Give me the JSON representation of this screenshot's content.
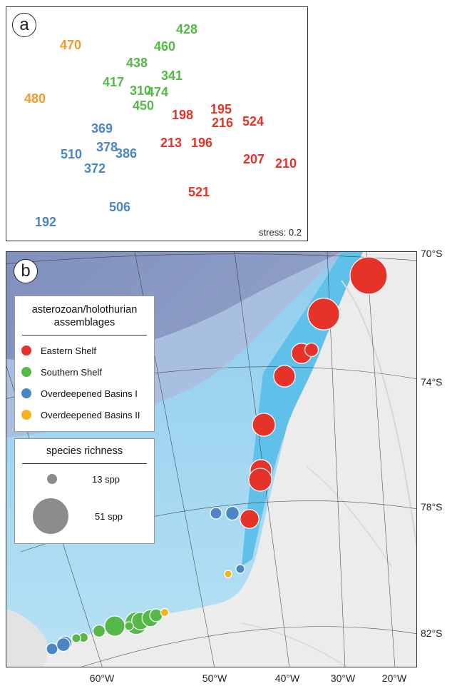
{
  "panel_a": {
    "label": "a",
    "stress": "stress: 0.2",
    "colors": {
      "eastern": "#e63329",
      "southern": "#55b848",
      "basins1": "#4a86c5",
      "basins2": "#f39a2a"
    },
    "points": [
      {
        "text": "428",
        "group": "southern"
      },
      {
        "text": "470",
        "group": "basins2"
      },
      {
        "text": "460",
        "group": "southern"
      },
      {
        "text": "438",
        "group": "southern"
      },
      {
        "text": "341",
        "group": "southern"
      },
      {
        "text": "417",
        "group": "southern"
      },
      {
        "text": "310",
        "group": "southern"
      },
      {
        "text": "474",
        "group": "southern"
      },
      {
        "text": "480",
        "group": "basins2"
      },
      {
        "text": "450",
        "group": "southern"
      },
      {
        "text": "195",
        "group": "eastern"
      },
      {
        "text": "198",
        "group": "eastern"
      },
      {
        "text": "216",
        "group": "eastern"
      },
      {
        "text": "524",
        "group": "eastern"
      },
      {
        "text": "369",
        "group": "basins1"
      },
      {
        "text": "213",
        "group": "eastern"
      },
      {
        "text": "196",
        "group": "eastern"
      },
      {
        "text": "378",
        "group": "basins1"
      },
      {
        "text": "510",
        "group": "basins1"
      },
      {
        "text": "386",
        "group": "basins1"
      },
      {
        "text": "207",
        "group": "eastern"
      },
      {
        "text": "210",
        "group": "eastern"
      },
      {
        "text": "372",
        "group": "basins1"
      },
      {
        "text": "521",
        "group": "eastern"
      },
      {
        "text": "506",
        "group": "basins1"
      },
      {
        "text": "192",
        "group": "basins1"
      }
    ]
  },
  "panel_b": {
    "label": "b",
    "lat_labels": [
      "70°S",
      "74°S",
      "78°S",
      "82°S"
    ],
    "lon_labels": [
      "60°W",
      "50°W",
      "40°W",
      "30°W",
      "20°W"
    ],
    "legend": {
      "title": "asterozoan/holothurian assemblages",
      "title_line1": "asterozoan/holothurian",
      "title_line2": "assemblages",
      "items": [
        {
          "label": "Eastern Shelf",
          "color": "#e63329"
        },
        {
          "label": "Southern Shelf",
          "color": "#55b848"
        },
        {
          "label": "Overdeepened Basins I",
          "color": "#4a86c5"
        },
        {
          "label": "Overdeepened Basins II",
          "color": "#f7b21f"
        }
      ],
      "size_title": "species richness",
      "size_items": [
        {
          "label": "13 spp",
          "species": 13
        },
        {
          "label": "51 spp",
          "species": 51
        }
      ]
    },
    "sites": [
      {
        "group": "eastern",
        "species": 51
      },
      {
        "group": "eastern",
        "species": 43
      },
      {
        "group": "eastern",
        "species": 26
      },
      {
        "group": "eastern",
        "species": 16
      },
      {
        "group": "eastern",
        "species": 28
      },
      {
        "group": "eastern",
        "species": 30
      },
      {
        "group": "eastern",
        "species": 28
      },
      {
        "group": "eastern",
        "species": 30
      },
      {
        "group": "eastern",
        "species": 24
      },
      {
        "group": "basins1",
        "species": 13
      },
      {
        "group": "basins1",
        "species": 16
      },
      {
        "group": "basins1",
        "species": 9
      },
      {
        "group": "basins2",
        "species": 7
      },
      {
        "group": "southern",
        "species": 10
      },
      {
        "group": "southern",
        "species": 14
      },
      {
        "group": "southern",
        "species": 26
      },
      {
        "group": "southern",
        "species": 29
      },
      {
        "group": "southern",
        "species": 22
      },
      {
        "group": "southern",
        "species": 21
      },
      {
        "group": "southern",
        "species": 15
      },
      {
        "group": "southern",
        "species": 9
      },
      {
        "group": "southern",
        "species": 9
      },
      {
        "group": "basins2",
        "species": 8
      },
      {
        "group": "basins1",
        "species": 17
      },
      {
        "group": "basins1",
        "species": 13
      },
      {
        "group": "basins1",
        "species": 16
      }
    ],
    "colors": {
      "eastern": "#e63329",
      "southern": "#55b848",
      "basins1": "#4a86c5",
      "basins2": "#f7b21f",
      "deep_ocean": "#8f9dc4",
      "slope": "#a6c4e4",
      "shelf": "#a8d8f0",
      "shallow": "#6fc7ee",
      "land": "#ececec"
    }
  }
}
